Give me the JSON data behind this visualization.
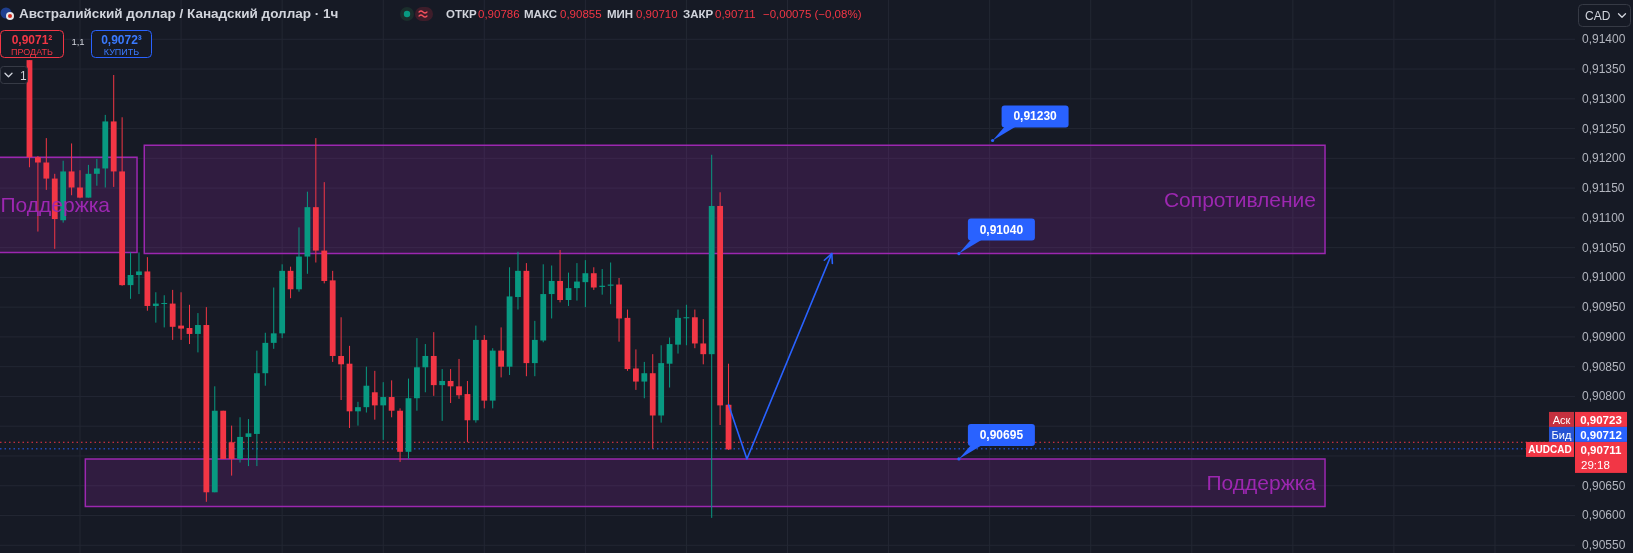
{
  "chart_data": {
    "type": "candlestick",
    "title": "Австралийский доллар / Канадский доллар · 1ч",
    "categories": [
      null,
      null,
      null,
      null,
      null,
      null,
      null,
      null,
      null,
      null,
      null,
      null,
      null,
      null,
      null,
      null,
      null,
      null,
      null,
      null,
      null,
      null,
      null,
      null,
      null,
      null,
      null,
      null,
      null,
      null,
      null,
      null,
      null,
      null,
      null,
      null,
      null,
      null,
      null,
      null,
      null,
      null,
      null,
      null,
      null,
      null,
      null,
      null,
      null,
      null,
      null,
      null,
      null,
      null,
      null,
      null,
      null,
      null,
      null,
      null,
      null,
      null,
      null,
      null,
      null,
      null,
      null,
      null,
      null,
      null,
      null,
      null,
      null,
      null,
      null,
      null,
      null,
      null,
      null,
      null,
      null,
      null,
      null,
      null,
      null,
      null,
      null,
      null,
      null,
      null,
      null,
      null,
      null,
      null,
      null,
      null,
      null,
      null,
      null,
      null,
      null,
      null,
      null,
      null,
      null,
      null,
      null,
      null,
      null,
      null,
      null,
      null,
      null,
      null,
      null,
      null,
      null,
      null,
      null,
      null,
      null,
      null,
      null,
      null,
      null,
      null,
      null,
      null,
      null,
      null,
      null,
      null,
      null,
      null,
      null,
      null,
      null,
      null,
      null,
      null,
      null,
      null,
      null,
      null,
      null,
      null,
      null,
      null,
      null,
      null,
      null,
      null,
      null,
      null,
      null,
      null,
      null,
      null,
      null,
      null,
      null,
      null,
      null,
      null,
      null,
      null,
      null,
      null,
      null,
      null,
      null,
      null,
      null,
      null,
      null,
      null,
      null,
      null,
      null,
      null,
      null,
      null,
      null,
      null,
      null,
      null,
      null
    ],
    "ohlc": [
      null,
      null,
      null,
      [
        0.91365,
        0.91365,
        0.91185,
        0.91202
      ],
      [
        0.91202,
        0.91204,
        0.91077,
        0.91193
      ],
      [
        0.91193,
        0.91234,
        0.91147,
        0.91166
      ],
      [
        0.91166,
        0.91174,
        0.91048,
        0.91098
      ],
      [
        0.91096,
        0.91196,
        0.91092,
        0.91178
      ],
      [
        0.91178,
        0.91225,
        0.91138,
        0.91151
      ],
      [
        0.91151,
        0.9118,
        0.91133,
        0.91134
      ],
      [
        0.91134,
        0.91189,
        0.91134,
        0.91174
      ],
      [
        0.91174,
        0.91199,
        0.91154,
        0.91183
      ],
      [
        0.91183,
        0.91273,
        0.91151,
        0.91262
      ],
      [
        0.91262,
        0.9134,
        0.91152,
        0.91178
      ],
      [
        0.91178,
        0.91269,
        0.90986,
        0.90987
      ],
      [
        0.90987,
        0.91042,
        0.90964,
        0.91004
      ],
      [
        0.91004,
        0.91042,
        0.90972,
        0.9101
      ],
      [
        0.9101,
        0.91034,
        0.90944,
        0.90952
      ],
      [
        0.90952,
        0.90975,
        0.90924,
        0.90956
      ],
      [
        0.90956,
        0.9097,
        0.90916,
        0.90957
      ],
      [
        0.90956,
        0.90979,
        0.90895,
        0.90917
      ],
      [
        0.90919,
        0.90975,
        0.90895,
        0.90914
      ],
      [
        0.90915,
        0.90954,
        0.90888,
        0.90905
      ],
      [
        0.90905,
        0.9094,
        0.90874,
        0.9092
      ],
      [
        0.9092,
        0.9095,
        0.90623,
        0.90639
      ],
      [
        0.90639,
        0.90817,
        0.90639,
        0.90776
      ],
      [
        0.90776,
        0.90776,
        0.90695,
        0.90695
      ],
      [
        0.90723,
        0.90751,
        0.90667,
        0.90695
      ],
      [
        0.90695,
        0.90765,
        0.90689,
        0.90732
      ],
      [
        0.90732,
        0.90762,
        0.90683,
        0.90738
      ],
      [
        0.90737,
        0.90877,
        0.90683,
        0.90839
      ],
      [
        0.90839,
        0.90907,
        0.90818,
        0.9089
      ],
      [
        0.9089,
        0.90983,
        0.9088,
        0.90906
      ],
      [
        0.90906,
        0.91022,
        0.90898,
        0.91011
      ],
      [
        0.91011,
        0.91018,
        0.90965,
        0.9098
      ],
      [
        0.9098,
        0.91084,
        0.90976,
        0.91035
      ],
      [
        0.91035,
        0.91144,
        0.91006,
        0.91118
      ],
      [
        0.91118,
        0.91234,
        0.91025,
        0.91045
      ],
      [
        0.91045,
        0.9116,
        0.9099,
        0.90994
      ],
      [
        0.90995,
        0.91011,
        0.90858,
        0.90868
      ],
      [
        0.90868,
        0.90933,
        0.90794,
        0.90854
      ],
      [
        0.90855,
        0.90885,
        0.90747,
        0.90775
      ],
      [
        0.90775,
        0.90791,
        0.90751,
        0.90782
      ],
      [
        0.90782,
        0.9085,
        0.90773,
        0.90818
      ],
      [
        0.90807,
        0.90843,
        0.90761,
        0.90785
      ],
      [
        0.90785,
        0.90824,
        0.90727,
        0.90799
      ],
      [
        0.90799,
        0.90827,
        0.90765,
        0.90776
      ],
      [
        0.90776,
        0.9078,
        0.9069,
        0.90707
      ],
      [
        0.90707,
        0.9083,
        0.90695,
        0.90797
      ],
      [
        0.90797,
        0.90898,
        0.90776,
        0.90849
      ],
      [
        0.90849,
        0.90888,
        0.90807,
        0.90868
      ],
      [
        0.90868,
        0.90908,
        0.90801,
        0.90819
      ],
      [
        0.90819,
        0.90846,
        0.90759,
        0.90826
      ],
      [
        0.90826,
        0.90846,
        0.90789,
        0.90817
      ],
      [
        0.90817,
        0.90863,
        0.90796,
        0.90802
      ],
      [
        0.90804,
        0.90826,
        0.90723,
        0.9076
      ],
      [
        0.9076,
        0.90919,
        0.90756,
        0.90895
      ],
      [
        0.90895,
        0.90903,
        0.9078,
        0.90793
      ],
      [
        0.90793,
        0.90881,
        0.9078,
        0.90877
      ],
      [
        0.90877,
        0.90916,
        0.90832,
        0.9085
      ],
      [
        0.9085,
        0.91017,
        0.90836,
        0.90968
      ],
      [
        0.90967,
        0.91043,
        0.90946,
        0.91011
      ],
      [
        0.91011,
        0.91024,
        0.90834,
        0.90856
      ],
      [
        0.90856,
        0.90927,
        0.90834,
        0.90895
      ],
      [
        0.90894,
        0.91022,
        0.90891,
        0.90972
      ],
      [
        0.90972,
        0.9102,
        0.90931,
        0.90994
      ],
      [
        0.90994,
        0.91046,
        0.90958,
        0.90962
      ],
      [
        0.90962,
        0.91008,
        0.90952,
        0.90982
      ],
      [
        0.90982,
        0.91024,
        0.90961,
        0.90993
      ],
      [
        0.90992,
        0.91029,
        0.9095,
        0.91007
      ],
      [
        0.91007,
        0.91017,
        0.90979,
        0.90983
      ],
      [
        0.90984,
        0.91014,
        0.90971,
        0.90986
      ],
      [
        0.90986,
        0.91025,
        0.90955,
        0.90988
      ],
      [
        0.90988,
        0.90999,
        0.90892,
        0.90931
      ],
      [
        0.90932,
        0.90946,
        0.90843,
        0.90846
      ],
      [
        0.90847,
        0.90879,
        0.90811,
        0.90825
      ],
      [
        0.90825,
        0.90858,
        0.90797,
        0.90839
      ],
      [
        0.90839,
        0.90871,
        0.90712,
        0.90768
      ],
      [
        0.90768,
        0.90886,
        0.90756,
        0.90856
      ],
      [
        0.90855,
        0.90899,
        0.90815,
        0.90888
      ],
      [
        0.90887,
        0.90946,
        0.90872,
        0.90932
      ],
      [
        0.90932,
        0.90954,
        0.90886,
        0.90933
      ],
      [
        0.90933,
        0.90946,
        0.90881,
        0.90889
      ],
      [
        0.90889,
        0.9093,
        0.90854,
        0.90871
      ],
      [
        0.90871,
        0.91206,
        0.90596,
        0.9112
      ],
      [
        0.9112,
        0.91143,
        0.90752,
        0.90785
      ],
      [
        0.90786,
        0.90855,
        0.9071,
        0.90711
      ],
      null,
      null,
      null,
      null,
      null,
      null,
      null,
      null,
      null,
      null,
      null,
      null,
      null,
      null,
      null,
      null,
      null,
      null,
      null,
      null,
      null,
      null,
      null,
      null,
      null,
      null,
      null,
      null,
      null,
      null,
      null,
      null,
      null,
      null,
      null,
      null,
      null,
      null,
      null,
      null,
      null,
      null,
      null,
      null,
      null,
      null,
      null,
      null,
      null,
      null,
      null,
      null,
      null,
      null,
      null,
      null,
      null,
      null,
      null,
      null,
      null,
      null,
      null,
      null,
      null,
      null,
      null,
      null,
      null,
      null,
      null,
      null,
      null,
      null,
      null,
      null,
      null,
      null,
      null,
      null,
      null,
      null,
      null,
      null,
      null,
      null,
      null,
      null,
      null,
      null,
      null,
      null,
      null,
      null,
      null,
      null,
      null,
      null,
      null,
      null
    ],
    "ylim": [
      0.90537,
      0.91466
    ],
    "yticks": [
      {
        "value": 0.914,
        "label": "0,91400"
      },
      {
        "value": 0.9135,
        "label": "0,91350"
      },
      {
        "value": 0.913,
        "label": "0,91300"
      },
      {
        "value": 0.9125,
        "label": "0,91250"
      },
      {
        "value": 0.912,
        "label": "0,91200"
      },
      {
        "value": 0.9115,
        "label": "0,91150"
      },
      {
        "value": 0.911,
        "label": "0,91100"
      },
      {
        "value": 0.9105,
        "label": "0,91050"
      },
      {
        "value": 0.91,
        "label": "0,91000"
      },
      {
        "value": 0.9095,
        "label": "0,90950"
      },
      {
        "value": 0.909,
        "label": "0,90900"
      },
      {
        "value": 0.9085,
        "label": "0,90850"
      },
      {
        "value": 0.908,
        "label": "0,90800"
      },
      {
        "value": 0.9075,
        "label": null
      },
      {
        "value": 0.907,
        "label": null
      },
      {
        "value": 0.9065,
        "label": "0,90650"
      },
      {
        "value": 0.906,
        "label": "0,90600"
      },
      {
        "value": 0.9055,
        "label": "0,90550"
      }
    ],
    "grid": true,
    "tick_labels": "y",
    "legend": "right",
    "bands": [
      {
        "axis": "y",
        "from": 0.91042,
        "to": 0.91202,
        "label": "Поддержка",
        "color": "#9c27b0"
      },
      {
        "axis": "y",
        "from": 0.9104,
        "to": 0.91222,
        "label": "Сопротивление",
        "color": "#9c27b0"
      },
      {
        "axis": "y",
        "from": 0.90615,
        "to": 0.90695,
        "label": "Поддержка",
        "color": "#9c27b0"
      }
    ],
    "ref_lines": [
      {
        "axis": "y",
        "value": 0.90723,
        "label": "Аск",
        "color": "#f23645",
        "line_style": "dotted"
      },
      {
        "axis": "y",
        "value": 0.90712,
        "label": "Бид",
        "color": "#2962ff",
        "line_style": "dotted"
      }
    ],
    "annotations": [
      "ОТКР",
      "0,90786",
      "МАКС",
      "0,90855",
      "МИН",
      "0,90710",
      "ЗАКР",
      "0,90711",
      "−0,00075 (−0,08%)",
      "0,9071²",
      "ПРОДАТЬ",
      "1,1",
      "0,9072³",
      "КУПИТЬ",
      "1",
      "CAD",
      {
        "text": "0,91230",
        "y": 0.9123
      },
      {
        "text": "0,91040",
        "y": 0.9104
      },
      {
        "text": "0,90695",
        "y": 0.90695
      },
      "0,90723",
      "0,90712",
      "AUDCAD",
      "0,90711",
      "29:18"
    ]
  }
}
